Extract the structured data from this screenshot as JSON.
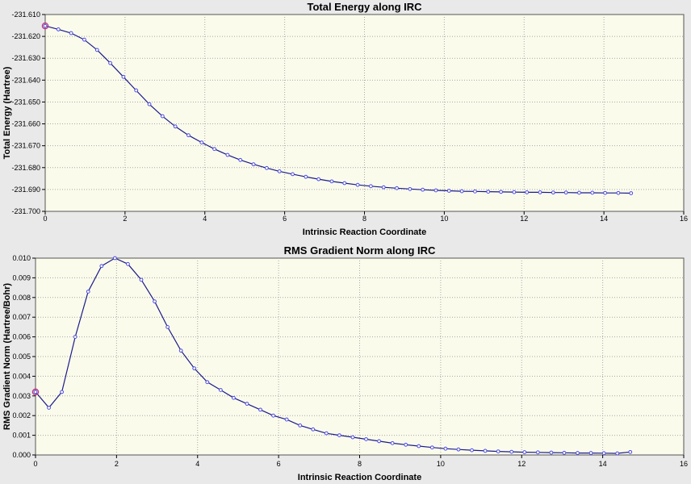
{
  "colors": {
    "plot_bg": "#fbfbec",
    "line": "#1a1a8a",
    "marker": "#4a4ae0",
    "grid": "#a8a8a8",
    "frame": "#555555",
    "highlight": "#c03080"
  },
  "chart_data": [
    {
      "type": "line",
      "title": "Total Energy along IRC",
      "xlabel": "Intrinsic Reaction Coordinate",
      "ylabel": "Total Energy (Hartree)",
      "xlim": [
        0,
        16
      ],
      "ylim": [
        -231.7,
        -231.61
      ],
      "xticks": [
        0,
        2,
        4,
        6,
        8,
        10,
        12,
        14,
        16
      ],
      "yticks": [
        -231.61,
        -231.62,
        -231.63,
        -231.64,
        -231.65,
        -231.66,
        -231.67,
        -231.68,
        -231.69,
        -231.7
      ],
      "ytick_labels": [
        "-231.610",
        "-231.620",
        "-231.630",
        "-231.640",
        "-231.650",
        "-231.660",
        "-231.670",
        "-231.680",
        "-231.690",
        "-231.700"
      ],
      "xtick_labels": [
        "0",
        "2",
        "4",
        "6",
        "8",
        "10",
        "12",
        "14",
        "16"
      ],
      "grid": true,
      "highlight_index": 0,
      "x": [
        0,
        0.33,
        0.65,
        0.98,
        1.3,
        1.63,
        1.96,
        2.28,
        2.61,
        2.94,
        3.26,
        3.59,
        3.92,
        4.24,
        4.57,
        4.89,
        5.22,
        5.55,
        5.87,
        6.2,
        6.53,
        6.85,
        7.18,
        7.5,
        7.83,
        8.16,
        8.48,
        8.81,
        9.14,
        9.46,
        9.79,
        10.12,
        10.44,
        10.77,
        11.1,
        11.42,
        11.75,
        12.07,
        12.4,
        12.73,
        13.05,
        13.38,
        13.71,
        14.03,
        14.36,
        14.68
      ],
      "y": [
        -231.6152,
        -231.6168,
        -231.6185,
        -231.6215,
        -231.6262,
        -231.6322,
        -231.6385,
        -231.6447,
        -231.651,
        -231.6565,
        -231.6612,
        -231.6652,
        -231.6685,
        -231.6715,
        -231.6742,
        -231.6765,
        -231.6785,
        -231.6802,
        -231.6817,
        -231.683,
        -231.6842,
        -231.6853,
        -231.6863,
        -231.6871,
        -231.6879,
        -231.6885,
        -231.689,
        -231.6894,
        -231.6898,
        -231.6901,
        -231.6904,
        -231.6906,
        -231.6908,
        -231.6909,
        -231.691,
        -231.6911,
        -231.6912,
        -231.6913,
        -231.6913,
        -231.6914,
        -231.6914,
        -231.6915,
        -231.6915,
        -231.6916,
        -231.6916,
        -231.6917
      ]
    },
    {
      "type": "line",
      "title": "RMS Gradient Norm along IRC",
      "xlabel": "Intrinsic Reaction Coordinate",
      "ylabel": "RMS Gradient Norm (Hartree/Bohr)",
      "xlim": [
        0,
        16
      ],
      "ylim": [
        0,
        0.01
      ],
      "xticks": [
        0,
        2,
        4,
        6,
        8,
        10,
        12,
        14,
        16
      ],
      "yticks": [
        0,
        0.001,
        0.002,
        0.003,
        0.004,
        0.005,
        0.006,
        0.007,
        0.008,
        0.009,
        0.01
      ],
      "ytick_labels": [
        "0.000",
        "0.001",
        "0.002",
        "0.003",
        "0.004",
        "0.005",
        "0.006",
        "0.007",
        "0.008",
        "0.009",
        "0.010"
      ],
      "xtick_labels": [
        "0",
        "2",
        "4",
        "6",
        "8",
        "10",
        "12",
        "14",
        "16"
      ],
      "grid": true,
      "highlight_index": 0,
      "x": [
        0,
        0.33,
        0.65,
        0.98,
        1.3,
        1.63,
        1.96,
        2.28,
        2.61,
        2.94,
        3.26,
        3.59,
        3.92,
        4.24,
        4.57,
        4.89,
        5.22,
        5.55,
        5.87,
        6.2,
        6.53,
        6.85,
        7.18,
        7.5,
        7.83,
        8.16,
        8.48,
        8.81,
        9.14,
        9.46,
        9.79,
        10.12,
        10.44,
        10.77,
        11.1,
        11.42,
        11.75,
        12.07,
        12.4,
        12.73,
        13.05,
        13.38,
        13.71,
        14.03,
        14.36,
        14.68
      ],
      "y": [
        0.0032,
        0.0024,
        0.0032,
        0.006,
        0.0083,
        0.0096,
        0.01,
        0.0097,
        0.0089,
        0.0078,
        0.0065,
        0.0053,
        0.0044,
        0.0037,
        0.0033,
        0.0029,
        0.0026,
        0.0023,
        0.002,
        0.0018,
        0.0015,
        0.0013,
        0.0011,
        0.001,
        0.0009,
        0.0008,
        0.0007,
        0.0006,
        0.00052,
        0.00045,
        0.00038,
        0.00032,
        0.00028,
        0.00024,
        0.00021,
        0.00018,
        0.00016,
        0.00014,
        0.00013,
        0.00012,
        0.00011,
        0.0001,
        0.0001,
        9e-05,
        8e-05,
        0.00015
      ]
    }
  ]
}
